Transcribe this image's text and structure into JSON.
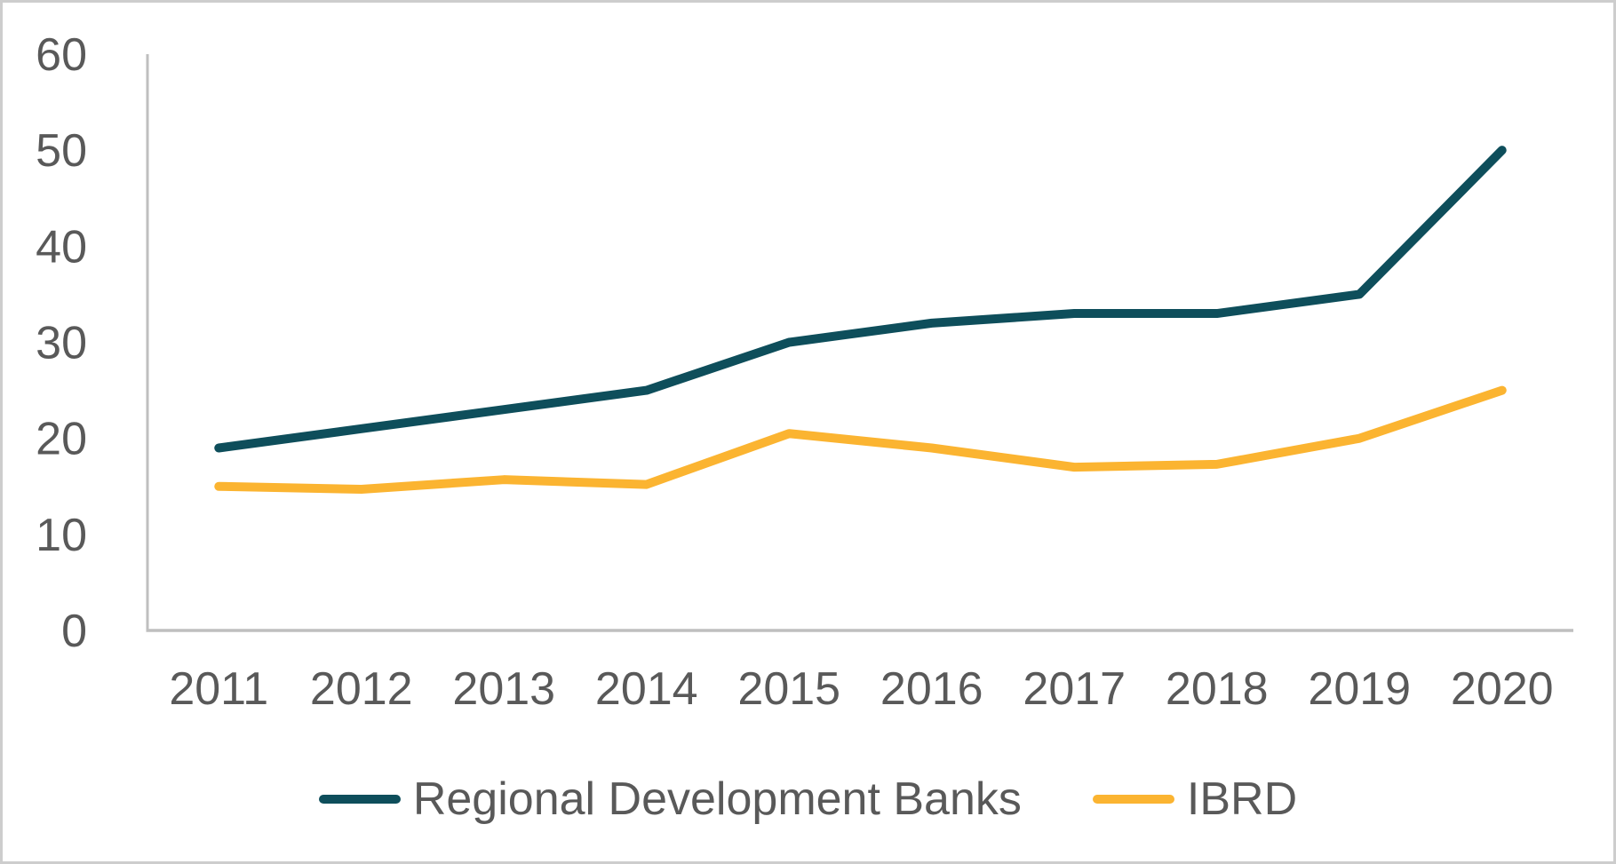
{
  "chart_data": {
    "type": "line",
    "title": "",
    "xlabel": "",
    "ylabel": "",
    "categories": [
      "2011",
      "2012",
      "2013",
      "2014",
      "2015",
      "2016",
      "2017",
      "2018",
      "2019",
      "2020"
    ],
    "series": [
      {
        "name": "Regional Development Banks",
        "color": "#0E4E5B",
        "values": [
          19,
          21,
          23,
          25,
          30,
          32,
          33,
          33,
          35,
          50
        ]
      },
      {
        "name": "IBRD",
        "color": "#FBB431",
        "values": [
          15,
          14.7,
          15.7,
          15.2,
          20.5,
          19,
          17,
          17.3,
          20,
          25
        ]
      }
    ],
    "ylim": [
      0,
      60
    ],
    "y_ticks": [
      0,
      10,
      20,
      30,
      40,
      50,
      60
    ],
    "grid": false,
    "legend_position": "bottom"
  },
  "colors": {
    "background": "#FFFFFF",
    "border": "#CDCDCD",
    "axis": "#BFBFBF",
    "text": "#595959"
  }
}
